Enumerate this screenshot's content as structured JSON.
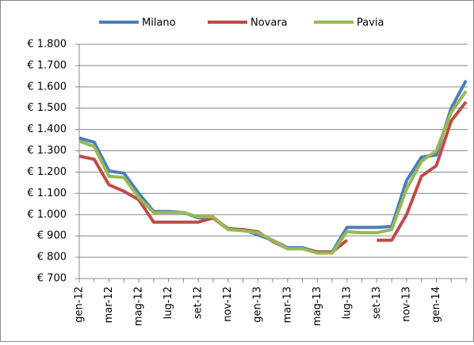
{
  "chart_data": {
    "type": "line",
    "categories": [
      "gen-12",
      null,
      "mar-12",
      null,
      "mag-12",
      null,
      "lug-12",
      null,
      "set-12",
      null,
      "nov-12",
      null,
      "gen-13",
      null,
      "mar-13",
      null,
      "mag-13",
      null,
      "lug-13",
      null,
      "set-13",
      null,
      "nov-13",
      null,
      "gen-14",
      null,
      null
    ],
    "series": [
      {
        "name": "Milano",
        "color": "#4a7ebb",
        "values": [
          1360,
          1340,
          1205,
          1195,
          1100,
          1015,
          1015,
          1010,
          985,
          985,
          935,
          930,
          905,
          880,
          845,
          845,
          825,
          825,
          940,
          940,
          940,
          945,
          1160,
          1270,
          1280,
          1500,
          1630
        ]
      },
      {
        "name": "Novara",
        "color": "#be4b48",
        "values": [
          1275,
          1260,
          1140,
          1110,
          1070,
          965,
          965,
          965,
          965,
          985,
          930,
          930,
          920,
          875,
          840,
          840,
          825,
          825,
          880,
          null,
          880,
          880,
          1000,
          1180,
          1230,
          1440,
          1530
        ]
      },
      {
        "name": "Pavia",
        "color": "#98b954",
        "values": [
          1345,
          1320,
          1180,
          1175,
          1080,
          1010,
          1010,
          1010,
          990,
          990,
          930,
          925,
          915,
          880,
          840,
          840,
          820,
          820,
          920,
          915,
          915,
          930,
          1120,
          1250,
          1300,
          1480,
          1580
        ]
      }
    ],
    "ylim": [
      700,
      1800
    ],
    "yticks": [
      {
        "value": 700,
        "label": "€ 700"
      },
      {
        "value": 800,
        "label": "€ 800"
      },
      {
        "value": 900,
        "label": "€ 900"
      },
      {
        "value": 1000,
        "label": "€ 1.000"
      },
      {
        "value": 1100,
        "label": "€ 1.100"
      },
      {
        "value": 1200,
        "label": "€ 1.200"
      },
      {
        "value": 1300,
        "label": "€ 1.300"
      },
      {
        "value": 1400,
        "label": "€ 1.400"
      },
      {
        "value": 1500,
        "label": "€ 1.500"
      },
      {
        "value": 1600,
        "label": "€ 1.600"
      },
      {
        "value": 1700,
        "label": "€ 1.700"
      },
      {
        "value": 1800,
        "label": "€ 1.800"
      }
    ],
    "grid": true
  }
}
